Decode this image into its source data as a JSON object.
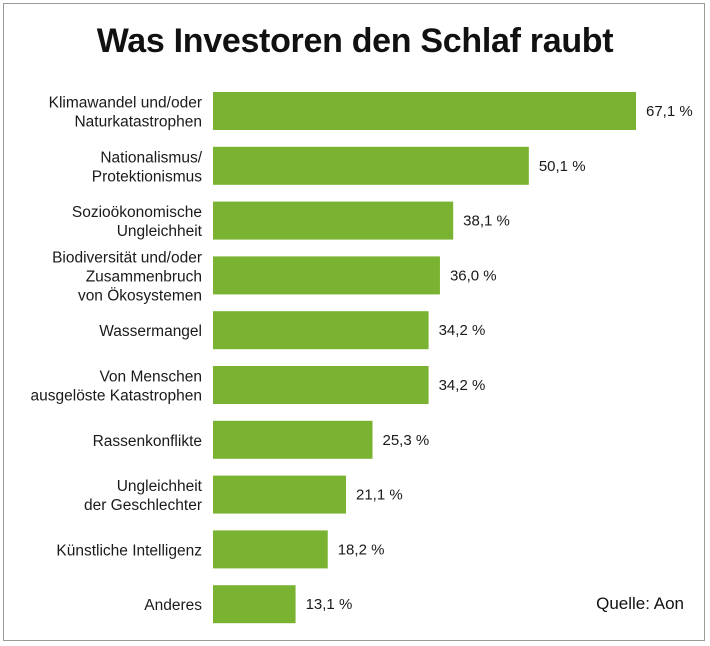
{
  "chart_data": {
    "type": "bar",
    "orientation": "horizontal",
    "title": "Was Investoren den Schlaf raubt",
    "categories": [
      [
        "Klimawandel und/oder",
        "Naturkatastrophen"
      ],
      [
        "Nationalismus/",
        "Protektionismus"
      ],
      [
        "Sozioökonomische",
        "Ungleichheit"
      ],
      [
        "Biodiversität und/oder",
        "Zusammenbruch",
        "von Ökosystemen"
      ],
      [
        "Wassermangel"
      ],
      [
        "Von Menschen",
        "ausgelöste Katastrophen"
      ],
      [
        "Rassenkonflikte"
      ],
      [
        "Ungleichheit",
        "der Geschlechter"
      ],
      [
        "Künstliche Intelligenz"
      ],
      [
        "Anderes"
      ]
    ],
    "values": [
      67.1,
      50.1,
      38.1,
      36.0,
      34.2,
      34.2,
      25.3,
      21.1,
      18.2,
      13.1
    ],
    "value_labels": [
      "67,1 %",
      "50,1 %",
      "38,1 %",
      "36,0 %",
      "34,2 %",
      "34,2 %",
      "25,3 %",
      "21,1 %",
      "18,2 %",
      "13,1 %"
    ],
    "xlim": [
      0,
      67.1
    ],
    "grid": false,
    "bar_color": "#7ab332",
    "source": "Quelle: Aon"
  }
}
